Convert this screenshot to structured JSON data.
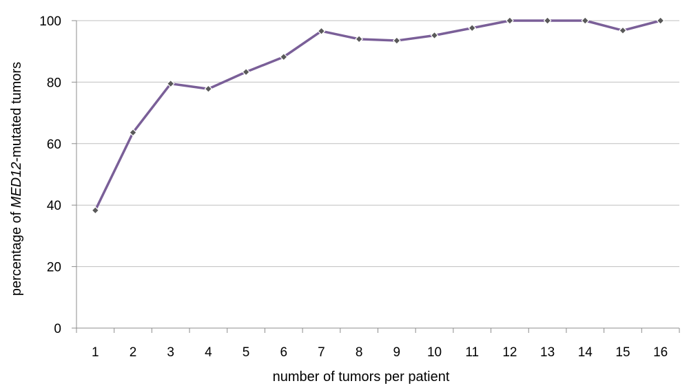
{
  "chart_data": {
    "type": "line",
    "xlabel": "number of tumors per patient",
    "ylabel_prefix": "percentage of ",
    "ylabel_gene": "MED12",
    "ylabel_suffix": "-mutated tumors",
    "categories": [
      "1",
      "2",
      "3",
      "4",
      "5",
      "6",
      "7",
      "8",
      "9",
      "10",
      "11",
      "12",
      "13",
      "14",
      "15",
      "16"
    ],
    "series": [
      {
        "values": [
          38.3,
          63.6,
          79.5,
          77.8,
          83.3,
          88.2,
          96.6,
          94.0,
          93.5,
          95.2,
          97.6,
          100,
          100,
          100,
          96.8,
          100
        ]
      }
    ],
    "ylim": [
      0,
      100
    ],
    "yticks": [
      0,
      20,
      40,
      60,
      80,
      100
    ],
    "grid": true,
    "line_color": "#7a5f98",
    "marker_color": "#595959",
    "marker_shape": "diamond"
  }
}
